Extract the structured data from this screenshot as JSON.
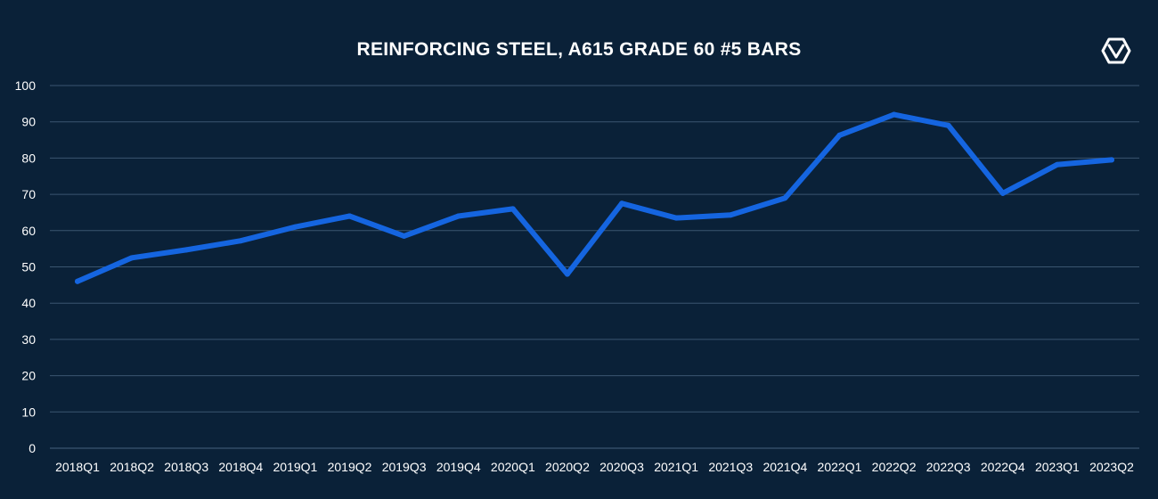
{
  "chart_data": {
    "type": "line",
    "title": "REINFORCING STEEL, A615 GRADE 60 #5 BARS",
    "xlabel": "",
    "ylabel": "",
    "categories": [
      "2018Q1",
      "2018Q2",
      "2018Q3",
      "2018Q4",
      "2019Q1",
      "2019Q2",
      "2019Q3",
      "2019Q4",
      "2020Q1",
      "2020Q2",
      "2020Q3",
      "2021Q1",
      "2021Q3",
      "2021Q4",
      "2022Q1",
      "2022Q2",
      "2022Q3",
      "2022Q4",
      "2023Q1",
      "2023Q2"
    ],
    "series": [
      {
        "values": [
          46,
          52.5,
          54.7,
          57.2,
          61,
          64,
          58.5,
          64,
          66,
          48,
          67.5,
          63.5,
          64.3,
          69,
          86.3,
          92,
          89,
          70.3,
          78.2,
          79.5
        ]
      }
    ],
    "ylim": [
      0,
      100
    ],
    "yticks": [
      0,
      10,
      20,
      30,
      40,
      50,
      60,
      70,
      80,
      90,
      100
    ],
    "grid": true,
    "legend": "none",
    "colors": {
      "background": "#0a2138",
      "line": "#1565e0",
      "grid": "#3a5570",
      "text": "#ffffff"
    }
  },
  "logo": {
    "icon": "brand-logo-icon"
  }
}
